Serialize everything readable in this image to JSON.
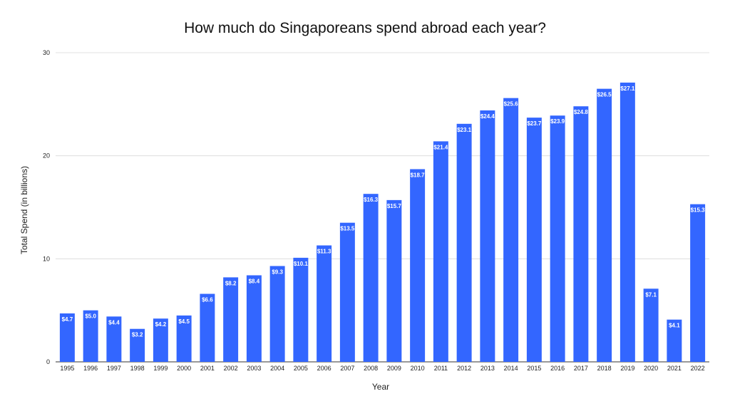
{
  "chart_data": {
    "type": "bar",
    "title": "How much do Singaporeans spend abroad each year?",
    "xlabel": "Year",
    "ylabel": "Total Spend (in billions)",
    "ylim": [
      0,
      30
    ],
    "yticks": [
      0,
      10,
      20,
      30
    ],
    "grid": true,
    "bar_color": "#3366ff",
    "categories": [
      "1995",
      "1996",
      "1997",
      "1998",
      "1999",
      "2000",
      "2001",
      "2002",
      "2003",
      "2004",
      "2005",
      "2006",
      "2007",
      "2008",
      "2009",
      "2010",
      "2011",
      "2012",
      "2013",
      "2014",
      "2015",
      "2016",
      "2017",
      "2018",
      "2019",
      "2020",
      "2021",
      "2022"
    ],
    "values": [
      4.7,
      5.0,
      4.4,
      3.2,
      4.2,
      4.5,
      6.6,
      8.2,
      8.4,
      9.3,
      10.1,
      11.3,
      13.5,
      16.3,
      15.7,
      18.7,
      21.4,
      23.1,
      24.4,
      25.6,
      23.7,
      23.9,
      24.8,
      26.5,
      27.1,
      7.1,
      4.1,
      15.3
    ],
    "data_labels": [
      "$4.7",
      "$5.0",
      "$4.4",
      "$3.2",
      "$4.2",
      "$4.5",
      "$6.6",
      "$8.2",
      "$8.4",
      "$9.3",
      "$10.1",
      "$11.3",
      "$13.5",
      "$16.3",
      "$15.7",
      "$18.7",
      "$21.4",
      "$23.1",
      "$24.4",
      "$25.6",
      "$23.7",
      "$23.9",
      "$24.8",
      "$26.5",
      "$27.1",
      "$7.1",
      "$4.1",
      "$15.3"
    ]
  }
}
